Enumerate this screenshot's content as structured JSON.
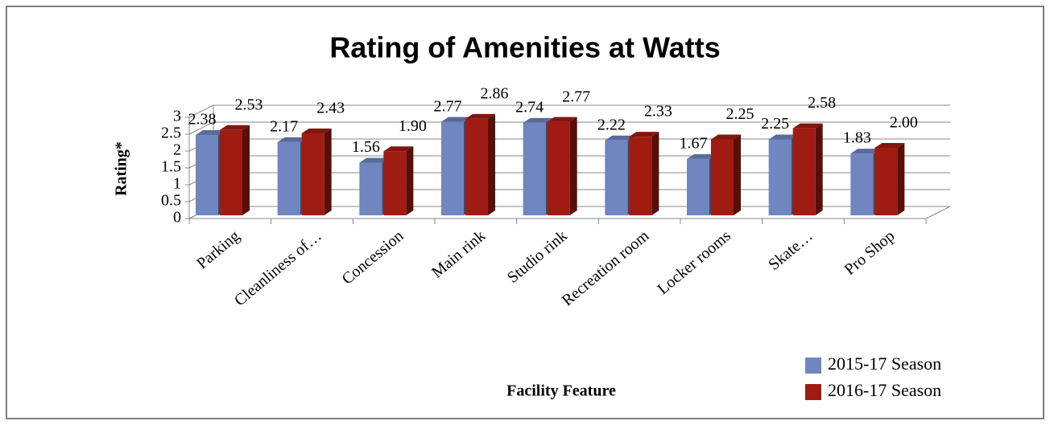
{
  "chart_data": {
    "type": "bar",
    "title": "Rating of Amenities at Watts",
    "y_label": "Rating*",
    "x_label": "Facility Feature",
    "categories": [
      "Parking",
      "Cleanliness of…",
      "Concession",
      "Main rink",
      "Studio rink",
      "Recreation room",
      "Locker rooms",
      "Skate…",
      "Pro Shop"
    ],
    "series": [
      {
        "name": "2015-17 Season",
        "color": "#6f86c0",
        "values": [
          2.38,
          2.17,
          1.56,
          2.77,
          2.74,
          2.22,
          1.67,
          2.25,
          1.83
        ],
        "value_labels": [
          "2.38",
          "2.17",
          "1.56",
          "2.77",
          "2.74",
          "2.22",
          "1.67",
          "2.25",
          "1.83"
        ]
      },
      {
        "name": "2016-17 Season",
        "color": "#a01c12",
        "values": [
          2.53,
          2.43,
          1.9,
          2.86,
          2.77,
          2.33,
          2.25,
          2.58,
          2.0
        ],
        "value_labels": [
          "2.53",
          "2.43",
          "1.90",
          "2.86",
          "2.77",
          "2.33",
          "2.25",
          "2.58",
          "2.00"
        ]
      }
    ],
    "ylim": [
      0,
      3
    ],
    "yticks": [
      0,
      0.5,
      1,
      1.5,
      2,
      2.5,
      3
    ],
    "grid": true,
    "legend": "bottom-right"
  }
}
